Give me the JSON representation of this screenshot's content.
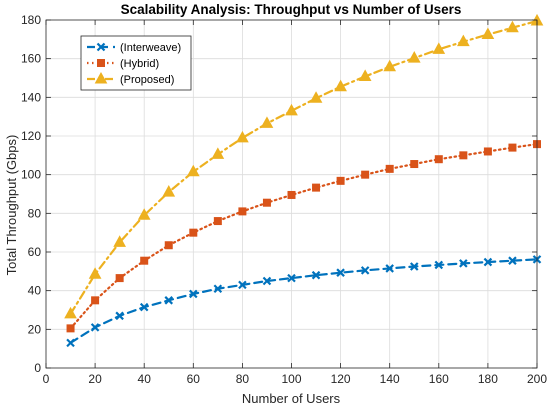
{
  "chart_data": {
    "type": "line",
    "title": "Scalability Analysis: Throughput vs Number of Users",
    "xlabel": "Number of Users",
    "ylabel": "Total Throughput (Gbps)",
    "xlim": [
      0,
      200
    ],
    "ylim": [
      0,
      180
    ],
    "xticks": [
      0,
      20,
      40,
      60,
      80,
      100,
      120,
      140,
      160,
      180,
      200
    ],
    "yticks": [
      0,
      20,
      40,
      60,
      80,
      100,
      120,
      140,
      160,
      180
    ],
    "grid": true,
    "legend_position": "top-left",
    "x": [
      10,
      20,
      30,
      40,
      50,
      60,
      70,
      80,
      90,
      100,
      110,
      120,
      130,
      140,
      150,
      160,
      170,
      180,
      190,
      200
    ],
    "series": [
      {
        "name": "(Interweave)",
        "color": "#0072BD",
        "line_style": "dashed",
        "marker": "x",
        "values": [
          13,
          21,
          27,
          31.5,
          35,
          38.3,
          41,
          43,
          45,
          46.5,
          48,
          49.3,
          50.5,
          51.5,
          52.5,
          53.3,
          54.1,
          54.8,
          55.5,
          56.2
        ]
      },
      {
        "name": "(Hybrid)",
        "color": "#D95319",
        "line_style": "dotted",
        "marker": "square",
        "values": [
          20.5,
          35,
          46.5,
          55.5,
          63.5,
          70,
          76,
          81,
          85.5,
          89.5,
          93.3,
          96.8,
          100,
          103,
          105.5,
          108,
          110,
          112,
          114,
          115.8
        ]
      },
      {
        "name": "(Proposed)",
        "color": "#EDB120",
        "line_style": "dashdot",
        "marker": "triangle",
        "values": [
          28,
          48.5,
          65,
          79,
          91,
          101.5,
          110.5,
          119,
          126.5,
          133,
          139.5,
          145.5,
          150.8,
          155.8,
          160.3,
          164.8,
          168.8,
          172.5,
          176,
          179.5
        ]
      }
    ]
  }
}
